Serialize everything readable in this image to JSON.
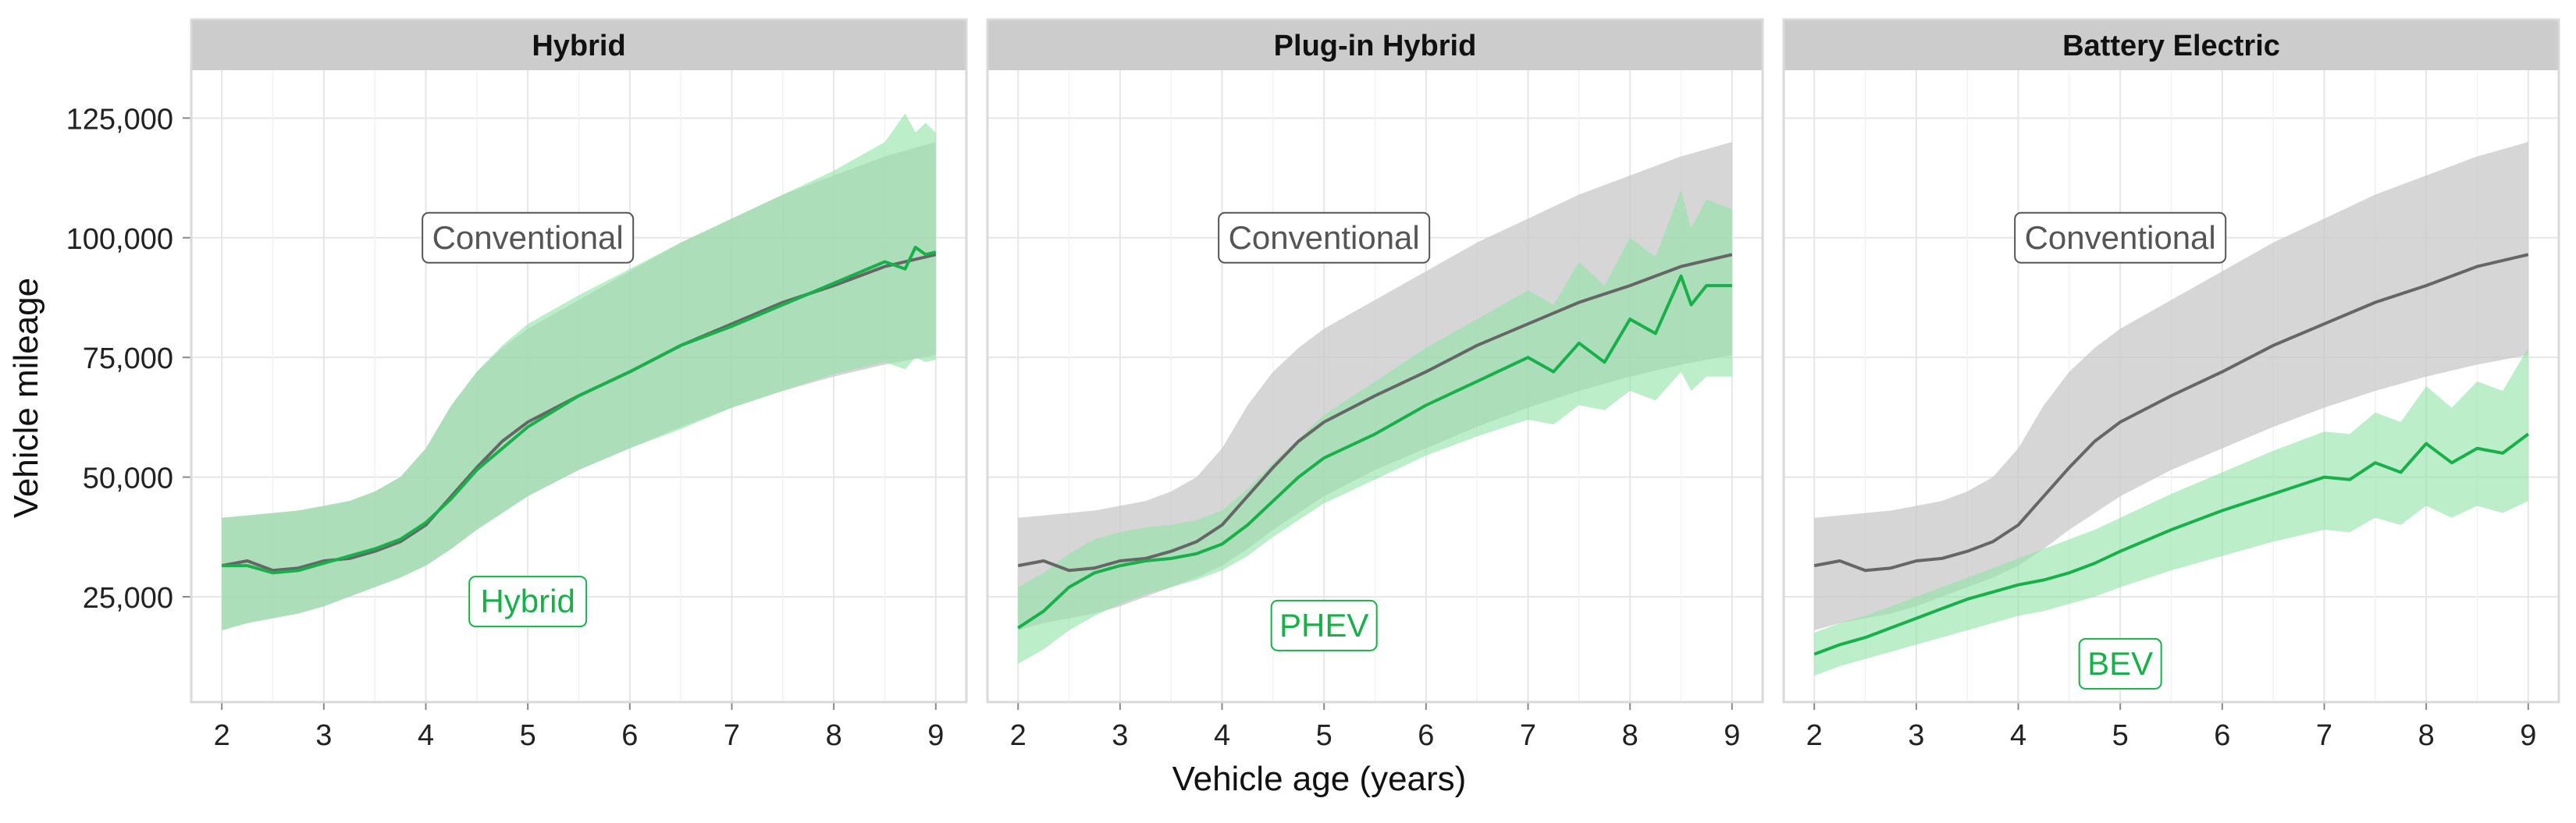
{
  "chart_data": {
    "type": "line",
    "x_label": "Vehicle age (years)",
    "y_label": "Vehicle mileage",
    "x_range": [
      1.7,
      9.3
    ],
    "y_range": [
      3000,
      135000
    ],
    "x_ticks": [
      2,
      3,
      4,
      5,
      6,
      7,
      8,
      9
    ],
    "y_ticks": [
      25000,
      50000,
      75000,
      100000,
      125000
    ],
    "y_tick_labels": [
      "25,000",
      "50,000",
      "75,000",
      "100,000",
      "125,000"
    ],
    "grid": true,
    "colors": {
      "conventional_line": "#666666",
      "conventional_band": "#c8c8c8",
      "ev_line": "#17b04a",
      "ev_band": "#8fe3a6",
      "strip_bg": "#cccccc",
      "panel_border": "#d9d9d9"
    },
    "conventional": {
      "name": "Conventional",
      "x": [
        2,
        2.25,
        2.5,
        2.75,
        3,
        3.25,
        3.5,
        3.75,
        4,
        4.25,
        4.5,
        4.75,
        5,
        5.5,
        6,
        6.5,
        7,
        7.5,
        8,
        8.5,
        9
      ],
      "mean": [
        31500,
        32500,
        30500,
        31000,
        32500,
        33000,
        34500,
        36500,
        40000,
        46000,
        52000,
        57500,
        61500,
        67000,
        72000,
        77500,
        82000,
        86500,
        90000,
        94000,
        96500
      ],
      "lower": [
        18000,
        19500,
        20500,
        21500,
        23000,
        25000,
        27000,
        29000,
        31500,
        35000,
        39000,
        42500,
        46000,
        51500,
        56000,
        60500,
        64500,
        68000,
        71000,
        73500,
        75500
      ],
      "upper": [
        41500,
        42000,
        42500,
        43000,
        44000,
        45000,
        47000,
        50000,
        56000,
        65000,
        72000,
        77000,
        81000,
        87000,
        93000,
        99000,
        104000,
        109000,
        113000,
        117000,
        120000
      ]
    },
    "facets": [
      {
        "title": "Hybrid",
        "conventional_label": "Conventional",
        "series_label": "Hybrid",
        "series": {
          "name": "Hybrid",
          "x": [
            2,
            2.25,
            2.5,
            2.75,
            3,
            3.25,
            3.5,
            3.75,
            4,
            4.25,
            4.5,
            4.75,
            5,
            5.5,
            6,
            6.5,
            7,
            7.5,
            8,
            8.5,
            8.7,
            8.8,
            8.9,
            9
          ],
          "mean": [
            31500,
            31500,
            30000,
            30500,
            32000,
            33500,
            35000,
            37000,
            40500,
            45500,
            51500,
            56000,
            60500,
            67000,
            72000,
            77500,
            81500,
            86000,
            90500,
            95000,
            93500,
            98000,
            96500,
            97000
          ],
          "lower": [
            18000,
            19500,
            20500,
            21500,
            23000,
            25000,
            27000,
            29000,
            31500,
            35000,
            39000,
            42500,
            46000,
            51500,
            56000,
            60000,
            64500,
            68000,
            71500,
            74000,
            72500,
            75000,
            74000,
            74500
          ],
          "upper": [
            41500,
            42000,
            42500,
            43000,
            44000,
            45000,
            47000,
            50000,
            56000,
            65000,
            72000,
            77500,
            82000,
            88000,
            93500,
            99000,
            104000,
            109000,
            114000,
            120000,
            126000,
            122000,
            124000,
            122000
          ]
        }
      },
      {
        "title": "Plug-in Hybrid",
        "conventional_label": "Conventional",
        "series_label": "PHEV",
        "series": {
          "name": "PHEV",
          "x": [
            2,
            2.25,
            2.5,
            2.75,
            3,
            3.25,
            3.5,
            3.75,
            4,
            4.25,
            4.5,
            4.75,
            5,
            5.5,
            6,
            6.5,
            7,
            7.25,
            7.5,
            7.75,
            8,
            8.25,
            8.5,
            8.6,
            8.75,
            9
          ],
          "mean": [
            18500,
            22000,
            27000,
            30000,
            31500,
            32500,
            33000,
            34000,
            36000,
            40000,
            45000,
            50000,
            54000,
            59000,
            65000,
            70000,
            75000,
            72000,
            78000,
            74000,
            83000,
            80000,
            92000,
            86000,
            90000,
            90000
          ],
          "lower": [
            11000,
            14000,
            18000,
            21000,
            23500,
            25500,
            27000,
            28500,
            30500,
            33500,
            37500,
            41000,
            44500,
            49500,
            54500,
            58500,
            62000,
            61000,
            65000,
            64000,
            68000,
            66000,
            72000,
            68000,
            71000,
            71000
          ],
          "upper": [
            27000,
            30000,
            34000,
            37000,
            38500,
            39500,
            40000,
            41000,
            43000,
            47500,
            53000,
            58000,
            63000,
            70000,
            77000,
            83000,
            89000,
            86000,
            95000,
            90000,
            100000,
            96000,
            110000,
            102000,
            108000,
            106000
          ]
        }
      },
      {
        "title": "Battery Electric",
        "conventional_label": "Conventional",
        "series_label": "BEV",
        "series": {
          "name": "BEV",
          "x": [
            2,
            2.25,
            2.5,
            2.75,
            3,
            3.25,
            3.5,
            3.75,
            4,
            4.25,
            4.5,
            4.75,
            5,
            5.5,
            6,
            6.5,
            7,
            7.25,
            7.5,
            7.75,
            8,
            8.25,
            8.5,
            8.75,
            9
          ],
          "mean": [
            13000,
            15000,
            16500,
            18500,
            20500,
            22500,
            24500,
            26000,
            27500,
            28500,
            30000,
            32000,
            34500,
            39000,
            43000,
            46500,
            50000,
            49500,
            53000,
            51000,
            57000,
            53000,
            56000,
            55000,
            59000
          ],
          "lower": [
            8500,
            10500,
            12000,
            13500,
            15000,
            16500,
            18000,
            19500,
            21000,
            22000,
            23500,
            25000,
            27000,
            30500,
            33500,
            36500,
            39000,
            38500,
            41500,
            40000,
            44000,
            41500,
            44000,
            42500,
            45000
          ],
          "upper": [
            17500,
            19500,
            21000,
            23000,
            25000,
            27000,
            29000,
            31000,
            33000,
            35000,
            37000,
            39000,
            41500,
            46500,
            51000,
            55500,
            59500,
            59000,
            63500,
            61500,
            69000,
            64500,
            70000,
            68000,
            77000
          ]
        }
      }
    ]
  }
}
